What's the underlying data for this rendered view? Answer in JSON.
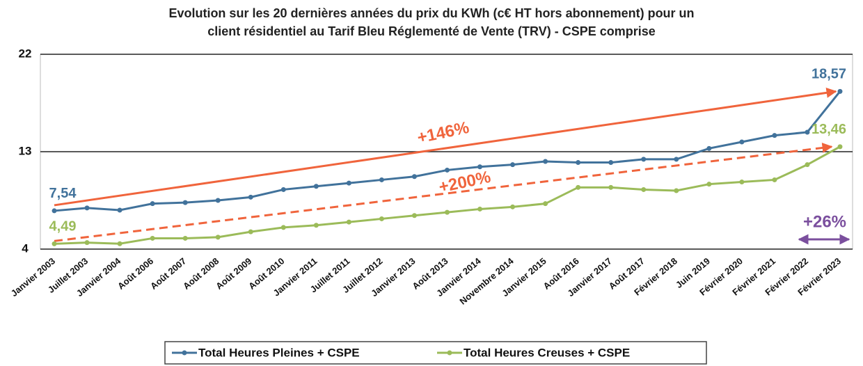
{
  "chart_data": {
    "type": "line",
    "title": [
      "Evolution sur les 20 dernières années du prix du KWh (c€ HT hors abonnement) pour un",
      "client résidentiel au Tarif Bleu Réglementé de Vente (TRV) - CSPE comprise"
    ],
    "categories": [
      "Janvier 2003",
      "Juillet 2003",
      "Janvier 2004",
      "Août 2006",
      "Août 2007",
      "Août 2008",
      "Août 2009",
      "Août 2010",
      "Janvier 2011",
      "Juillet 2011",
      "Juillet 2012",
      "Janvier 2013",
      "Août 2013",
      "Janvier 2014",
      "Novembre 2014",
      "Janvier 2015",
      "Août 2016",
      "Janvier 2017",
      "Août 2017",
      "Février 2018",
      "Juin 2019",
      "Février 2020",
      "Février 2021",
      "Février 2022",
      "Février 2023"
    ],
    "series": [
      {
        "name": "Total Heures Pleines + CSPE",
        "color": "#41729b",
        "values": [
          7.54,
          7.8,
          7.6,
          8.2,
          8.3,
          8.5,
          8.8,
          9.5,
          9.8,
          10.1,
          10.4,
          10.7,
          11.3,
          11.6,
          11.8,
          12.1,
          12.0,
          12.0,
          12.3,
          12.3,
          13.3,
          13.9,
          14.5,
          14.8,
          18.57
        ],
        "value_labels": [
          "7,54",
          null,
          null,
          null,
          null,
          null,
          null,
          null,
          null,
          null,
          null,
          null,
          null,
          null,
          null,
          null,
          null,
          null,
          null,
          null,
          null,
          null,
          null,
          null,
          "18,57"
        ]
      },
      {
        "name": "Total Heures Creuses + CSPE",
        "color": "#9bbb59",
        "values": [
          4.49,
          4.6,
          4.5,
          5.0,
          5.0,
          5.1,
          5.6,
          6.0,
          6.2,
          6.5,
          6.8,
          7.1,
          7.4,
          7.7,
          7.9,
          8.2,
          9.7,
          9.7,
          9.5,
          9.4,
          10.0,
          10.2,
          10.4,
          11.8,
          13.46
        ],
        "value_labels": [
          "4,49",
          null,
          null,
          null,
          null,
          null,
          null,
          null,
          null,
          null,
          null,
          null,
          null,
          null,
          null,
          null,
          null,
          null,
          null,
          null,
          null,
          null,
          null,
          null,
          "13,46"
        ]
      }
    ],
    "annotations": [
      {
        "text": "+146%",
        "color": "#f0643c"
      },
      {
        "text": "+200%",
        "color": "#f0643c"
      },
      {
        "text": "+26%",
        "color": "#7b4f9e"
      }
    ],
    "ylim": [
      4,
      22
    ],
    "yticks": [
      4,
      13,
      22
    ],
    "grid": true,
    "legend": "bottom"
  }
}
